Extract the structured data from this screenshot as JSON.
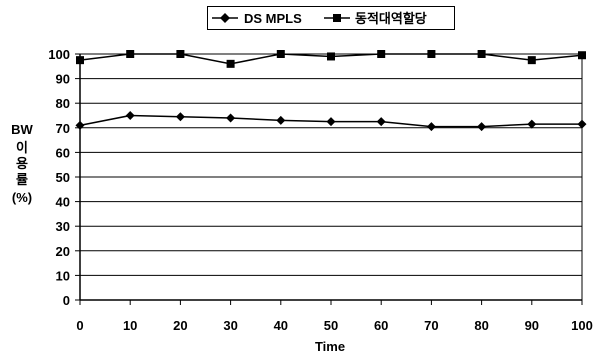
{
  "chart_data": {
    "type": "line",
    "title": "",
    "xlabel": "Time",
    "ylabel_lines": [
      "BW",
      "이",
      "용",
      "률",
      "(%)"
    ],
    "x": [
      0,
      10,
      20,
      30,
      40,
      50,
      60,
      70,
      80,
      90,
      100
    ],
    "xlim": [
      0,
      100
    ],
    "ylim": [
      0,
      100
    ],
    "yticks": [
      0,
      10,
      20,
      30,
      40,
      50,
      60,
      70,
      80,
      90,
      100
    ],
    "grid": true,
    "legend_position": "top-center",
    "series": [
      {
        "name": "DS MPLS",
        "marker": "diamond",
        "color": "#000000",
        "values": [
          71,
          75,
          74.5,
          74,
          73,
          72.5,
          72.5,
          70.5,
          70.5,
          71.5,
          71.5
        ]
      },
      {
        "name": "동적대역할당",
        "marker": "square",
        "color": "#000000",
        "values": [
          97.5,
          100,
          100,
          96,
          100,
          99,
          100,
          100,
          100,
          97.5,
          99.5
        ]
      }
    ]
  }
}
